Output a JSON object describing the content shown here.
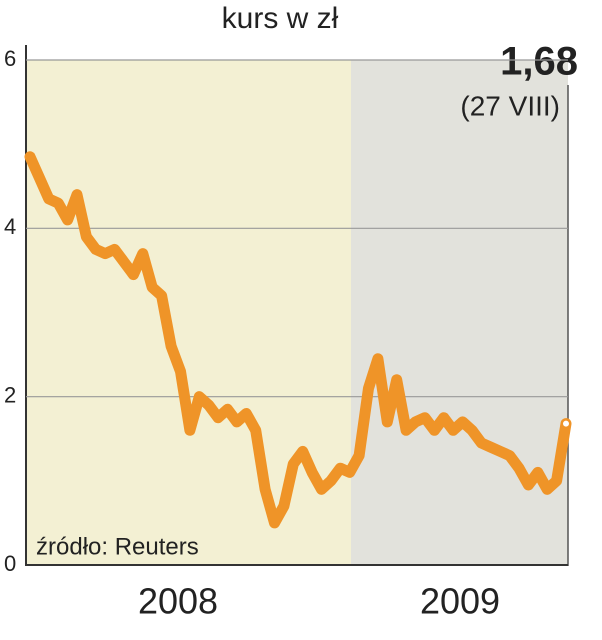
{
  "chart_data": {
    "type": "line",
    "title": "kurs w zł",
    "annotation": {
      "value_label": "1,68",
      "date": "(27 VIII)"
    },
    "source": "źródło: Reuters",
    "year_labels": [
      "2008",
      "2009"
    ],
    "color": "#ef9428",
    "values": [
      4.85,
      4.6,
      4.35,
      4.3,
      4.1,
      4.4,
      3.9,
      3.75,
      3.7,
      3.75,
      3.6,
      3.45,
      3.7,
      3.3,
      3.2,
      2.6,
      2.3,
      1.6,
      2.0,
      1.9,
      1.75,
      1.85,
      1.7,
      1.8,
      1.6,
      0.9,
      0.5,
      0.7,
      1.2,
      1.35,
      1.1,
      0.9,
      1.0,
      1.15,
      1.1,
      1.3,
      2.1,
      2.45,
      1.7,
      2.2,
      1.6,
      1.7,
      1.75,
      1.6,
      1.75,
      1.6,
      1.7,
      1.6,
      1.45,
      1.4,
      1.35,
      1.3,
      1.15,
      0.95,
      1.1,
      0.9,
      1.0,
      1.68
    ],
    "ylim": [
      0,
      6
    ],
    "yticks": [
      0,
      2,
      4,
      6
    ],
    "grid": true
  }
}
